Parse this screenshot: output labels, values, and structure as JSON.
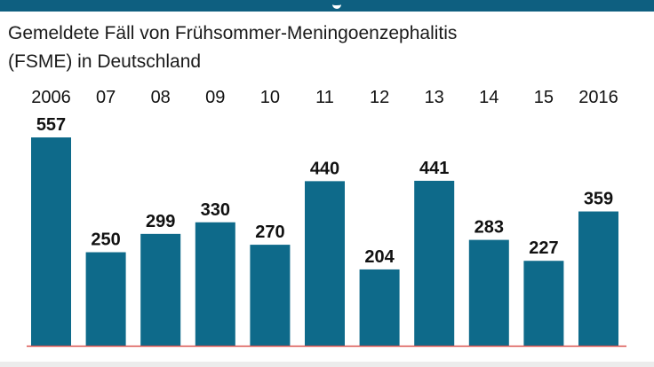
{
  "header": {
    "band_color": "#0e5f80"
  },
  "subtitle": {
    "line1": "Gemeldete Fäll von Frühsommer-Meningoenzephalitis",
    "line2": "(FSME) in Deutschland"
  },
  "chart_data": {
    "type": "bar",
    "categories": [
      "2006",
      "07",
      "08",
      "09",
      "10",
      "11",
      "12",
      "13",
      "14",
      "15",
      "2016"
    ],
    "values": [
      557,
      250,
      299,
      330,
      270,
      440,
      204,
      441,
      283,
      227,
      359
    ],
    "ylim": [
      0,
      557
    ],
    "grid": false,
    "colors": {
      "bar": "#0e6a8a",
      "baseline": "#d9534f",
      "text": "#111111"
    }
  }
}
